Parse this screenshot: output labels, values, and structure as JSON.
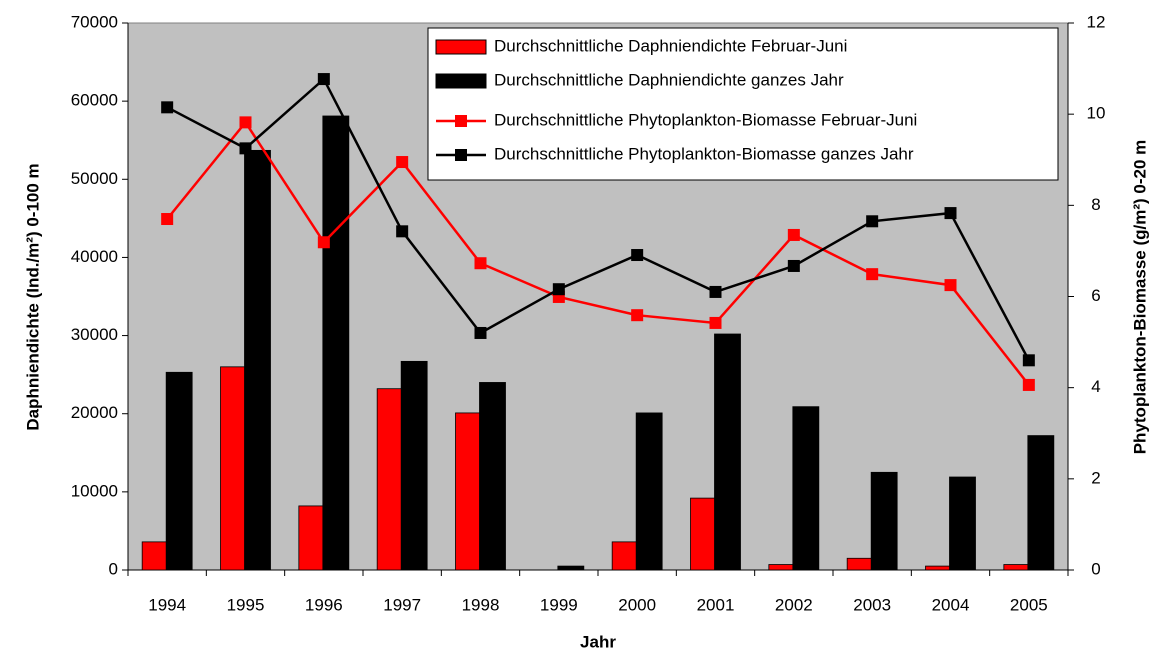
{
  "chart_data": {
    "type": "bar",
    "x_label": "Jahr",
    "y_label": "Daphniendichte (Ind./m²) 0-100 m",
    "y2_label": "Phytoplankton-Biomasse (g/m²) 0-20 m",
    "categories": [
      "1994",
      "1995",
      "1996",
      "1997",
      "1998",
      "1999",
      "2000",
      "2001",
      "2002",
      "2003",
      "2004",
      "2005"
    ],
    "ylim": [
      0,
      70000
    ],
    "yticks": [
      0,
      10000,
      20000,
      30000,
      40000,
      50000,
      60000,
      70000
    ],
    "y2lim": [
      0,
      12
    ],
    "y2ticks": [
      0,
      2,
      4,
      6,
      8,
      10,
      12
    ],
    "background": "#c0c0c0",
    "series": [
      {
        "name": "Durchschnittliche Daphniendichte Februar-Juni",
        "type": "bar",
        "color": "#ff0000",
        "values": [
          3600,
          26000,
          8200,
          23200,
          20100,
          0,
          3600,
          9200,
          700,
          1500,
          500,
          700
        ]
      },
      {
        "name": "Durchschnittliche Daphniendichte ganzes Jahr",
        "type": "bar",
        "color": "#000000",
        "values": [
          25300,
          53700,
          58100,
          26700,
          24000,
          500,
          20100,
          30200,
          20900,
          12500,
          11900,
          17200
        ]
      },
      {
        "name": "Durchschnittliche Phytoplankton-Biomasse Februar-Juni",
        "type": "line",
        "axis": "y2",
        "color": "#ff0000",
        "values": [
          7.7,
          9.82,
          7.19,
          8.95,
          6.73,
          5.99,
          5.59,
          5.42,
          7.35,
          6.49,
          6.25,
          4.06
        ]
      },
      {
        "name": "Durchschnittliche Phytoplankton-Biomasse ganzes Jahr",
        "type": "line",
        "axis": "y2",
        "color": "#000000",
        "values": [
          10.15,
          9.25,
          10.77,
          7.43,
          5.2,
          6.16,
          6.91,
          6.1,
          6.67,
          7.65,
          7.83,
          4.6
        ]
      }
    ]
  }
}
